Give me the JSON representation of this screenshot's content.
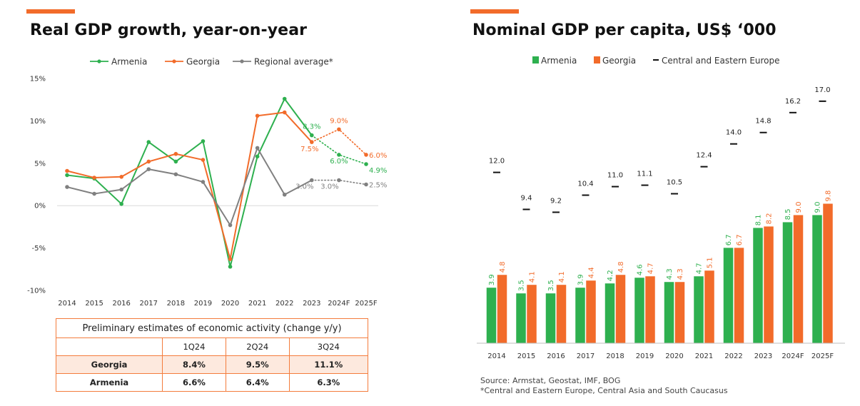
{
  "accent_color": "#f26b2a",
  "colors": {
    "armenia": "#2eb04f",
    "georgia": "#f26b2a",
    "regional": "#808080",
    "cee": "#111111"
  },
  "left": {
    "title": "Real GDP growth, year-on-year",
    "table": {
      "caption": "Preliminary estimates of economic activity (change y/y)",
      "headers": [
        "1Q24",
        "2Q24",
        "3Q24"
      ],
      "rows": [
        {
          "name": "Georgia",
          "values": [
            "8.4%",
            "9.5%",
            "11.1%"
          ]
        },
        {
          "name": "Armenia",
          "values": [
            "6.6%",
            "6.4%",
            "6.3%"
          ]
        }
      ]
    }
  },
  "right": {
    "title": "Nominal GDP per capita, US$ ‘000",
    "source_lines": [
      "Source: Armstat, Geostat, IMF, BOG",
      "*Central and Eastern Europe, Central Asia and South Caucasus"
    ]
  },
  "chart_data": [
    {
      "type": "line",
      "title": "Real GDP growth, year-on-year",
      "categories": [
        "2014",
        "2015",
        "2016",
        "2017",
        "2018",
        "2019",
        "2020",
        "2021",
        "2022",
        "2023",
        "2024F",
        "2025F"
      ],
      "y_tick_labels": [
        "15%",
        "10%",
        "5%",
        "0%",
        "-5%",
        "-10%"
      ],
      "ylim": [
        -10,
        15
      ],
      "legend": "top",
      "series": [
        {
          "name": "Armenia",
          "color": "#2eb04f",
          "values": [
            3.6,
            3.2,
            0.2,
            7.5,
            5.2,
            7.6,
            -7.2,
            5.8,
            12.6,
            8.3,
            6.0,
            4.9
          ],
          "forecast_from_index": 9
        },
        {
          "name": "Georgia",
          "color": "#f26b2a",
          "values": [
            4.1,
            3.3,
            3.4,
            5.2,
            6.1,
            5.4,
            -6.3,
            10.6,
            11.0,
            7.5,
            9.0,
            6.0
          ],
          "forecast_from_index": 9
        },
        {
          "name": "Regional average*",
          "color": "#808080",
          "values": [
            2.2,
            1.4,
            1.9,
            4.3,
            3.7,
            2.8,
            -2.3,
            6.8,
            1.3,
            3.0,
            3.0,
            2.5
          ],
          "forecast_from_index": 9
        }
      ],
      "data_labels": [
        {
          "series": 0,
          "index": 9,
          "text": "8.3%"
        },
        {
          "series": 0,
          "index": 10,
          "text": "6.0%"
        },
        {
          "series": 0,
          "index": 11,
          "text": "4.9%"
        },
        {
          "series": 1,
          "index": 9,
          "text": "7.5%"
        },
        {
          "series": 1,
          "index": 10,
          "text": "9.0%"
        },
        {
          "series": 1,
          "index": 11,
          "text": "6.0%"
        },
        {
          "series": 2,
          "index": 9,
          "text": "3.0%"
        },
        {
          "series": 2,
          "index": 10,
          "text": "3.0%"
        },
        {
          "series": 2,
          "index": 11,
          "text": "2.5%"
        }
      ]
    },
    {
      "type": "bar",
      "title": "Nominal GDP per capita, US$ ‘000",
      "categories": [
        "2014",
        "2015",
        "2016",
        "2017",
        "2018",
        "2019",
        "2020",
        "2021",
        "2022",
        "2023",
        "2024F",
        "2025F"
      ],
      "legend": "top",
      "series": [
        {
          "name": "Armenia",
          "type": "bar",
          "color": "#2eb04f",
          "values": [
            3.9,
            3.5,
            3.5,
            3.9,
            4.2,
            4.6,
            4.3,
            4.7,
            6.7,
            8.1,
            8.5,
            9.0
          ],
          "labels": [
            "3.9",
            "3.5",
            "3.5",
            "3.9",
            "4.2",
            "4.6",
            "4.3",
            "4.7",
            "6.7",
            "8.1",
            "8.5",
            "9.0"
          ]
        },
        {
          "name": "Georgia",
          "type": "bar",
          "color": "#f26b2a",
          "values": [
            4.8,
            4.1,
            4.1,
            4.4,
            4.8,
            4.7,
            4.3,
            5.1,
            6.7,
            8.2,
            9.0,
            9.8
          ],
          "labels": [
            "4.8",
            "4.1",
            "4.1",
            "4.4",
            "4.8",
            "4.7",
            "4.3",
            "5.1",
            "6.7",
            "8.2",
            "9.0",
            "9.8"
          ]
        },
        {
          "name": "Central and Eastern Europe",
          "type": "marker",
          "color": "#111111",
          "values": [
            12.0,
            9.4,
            9.2,
            10.4,
            11.0,
            11.1,
            10.5,
            12.4,
            14.0,
            14.8,
            16.2,
            17.0
          ],
          "labels": [
            "12.0",
            "9.4",
            "9.2",
            "10.4",
            "11.0",
            "11.1",
            "10.5",
            "12.4",
            "14.0",
            "14.8",
            "16.2",
            "17.0"
          ]
        }
      ]
    }
  ]
}
